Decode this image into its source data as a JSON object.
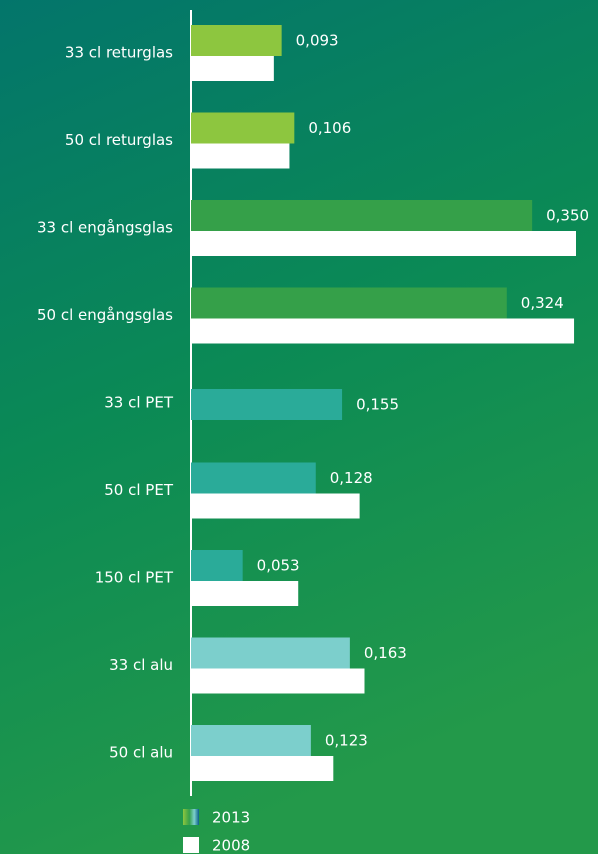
{
  "chart_data": {
    "type": "hbar",
    "categories": [
      "33 cl returglas",
      "50 cl returglas",
      "33 cl engångsglas",
      "50 cl engångsglas",
      "33 cl PET",
      "50 cl PET",
      "150 cl PET",
      "33 cl alu",
      "50 cl alu"
    ],
    "series": [
      {
        "name": "2013",
        "colors": [
          "#8dc63f",
          "#8dc63f",
          "#35a049",
          "#35a049",
          "#2aab99",
          "#2aab99",
          "#2aab99",
          "#7ccfcc",
          "#7ccfcc"
        ],
        "values": [
          0.093,
          0.106,
          0.35,
          0.324,
          0.155,
          0.128,
          0.053,
          0.163,
          0.123
        ],
        "value_labels": [
          "0,093",
          "0,106",
          "0,350",
          "0,324",
          "0,155",
          "0,128",
          "0,053",
          "0,163",
          "0,123"
        ]
      },
      {
        "name": "2008",
        "color": "#ffffff",
        "values": [
          0.085,
          0.101,
          0.395,
          0.393,
          null,
          0.173,
          0.11,
          0.178,
          0.146
        ]
      }
    ]
  }
}
